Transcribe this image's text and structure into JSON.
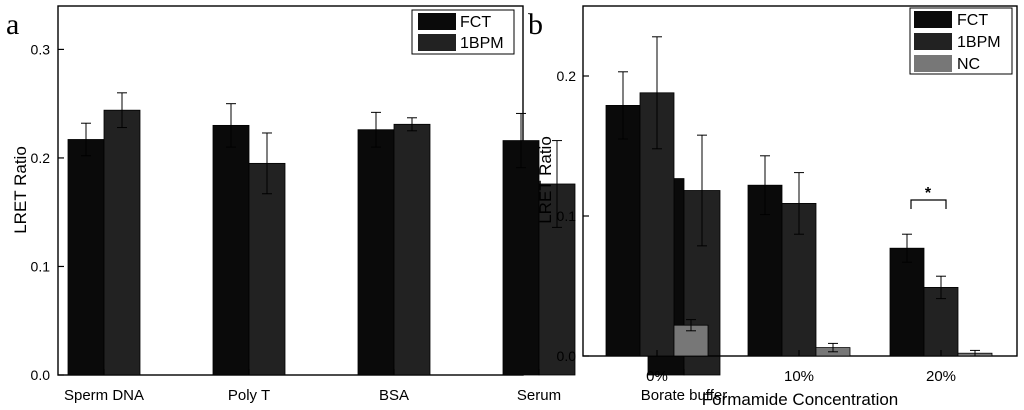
{
  "chart_data": [
    {
      "panel_label": "a",
      "type": "bar",
      "title": "",
      "xlabel": "",
      "ylabel": "LRET Ratio",
      "ylim": [
        0,
        0.34
      ],
      "yticks": [
        "0.0",
        "0.1",
        "0.2",
        "0.3"
      ],
      "legend_position": "top-right",
      "categories": [
        "Sperm DNA",
        "Poly T",
        "BSA",
        "Serum",
        "Borate buffer"
      ],
      "series": [
        {
          "name": "FCT",
          "color": "#0a0a0a",
          "values": [
            0.217,
            0.23,
            0.226,
            0.216,
            0.181
          ],
          "errors": [
            0.015,
            0.02,
            0.016,
            0.025,
            0.028
          ]
        },
        {
          "name": "1BPM",
          "color": "#222222",
          "values": [
            0.244,
            0.195,
            0.231,
            0.176,
            0.17
          ],
          "errors": [
            0.016,
            0.028,
            0.006,
            0.04,
            0.051
          ]
        }
      ]
    },
    {
      "panel_label": "b",
      "type": "bar",
      "title": "",
      "xlabel": "Formamide Concentration",
      "ylabel": "LRET Ratio",
      "ylim": [
        0,
        0.25
      ],
      "yticks": [
        "0.0",
        "0.1",
        "0.2"
      ],
      "legend_position": "top-right",
      "categories": [
        "0%",
        "10%",
        "20%"
      ],
      "annotation": "*",
      "series": [
        {
          "name": "FCT",
          "color": "#0a0a0a",
          "values": [
            0.179,
            0.122,
            0.077
          ],
          "errors": [
            0.024,
            0.021,
            0.01
          ]
        },
        {
          "name": "1BPM",
          "color": "#222222",
          "values": [
            0.188,
            0.109,
            0.049
          ],
          "errors": [
            0.04,
            0.022,
            0.008
          ]
        },
        {
          "name": "NC",
          "color": "#777777",
          "values": [
            0.022,
            0.006,
            0.002
          ],
          "errors": [
            0.004,
            0.003,
            0.002
          ]
        }
      ]
    }
  ]
}
